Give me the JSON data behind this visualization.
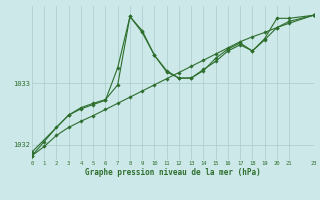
{
  "title": "Graphe pression niveau de la mer (hPa)",
  "bg_color": "#cce8e8",
  "line_color": "#2d6e2d",
  "grid_color": "#aacccc",
  "xlim": [
    0,
    23
  ],
  "ylim": [
    1031.75,
    1034.25
  ],
  "yticks": [
    1032,
    1033
  ],
  "xticks": [
    0,
    1,
    2,
    3,
    4,
    5,
    6,
    7,
    8,
    9,
    10,
    11,
    12,
    13,
    14,
    15,
    16,
    17,
    18,
    19,
    20,
    21,
    23
  ],
  "series1_x": [
    0,
    1,
    2,
    3,
    4,
    5,
    6,
    7,
    8,
    9,
    10,
    11,
    12,
    13,
    14,
    15,
    16,
    17,
    18,
    19,
    20,
    21,
    23
  ],
  "series1_y": [
    1031.82,
    1031.97,
    1032.15,
    1032.28,
    1032.38,
    1032.47,
    1032.57,
    1032.67,
    1032.77,
    1032.87,
    1032.97,
    1033.07,
    1033.17,
    1033.27,
    1033.37,
    1033.47,
    1033.57,
    1033.67,
    1033.75,
    1033.82,
    1033.9,
    1033.97,
    1034.1
  ],
  "series2_x": [
    0,
    1,
    2,
    3,
    4,
    5,
    6,
    7,
    8,
    9,
    10,
    11,
    12,
    13,
    14,
    15,
    16,
    17,
    18,
    19,
    20,
    21,
    23
  ],
  "series2_y": [
    1031.82,
    1032.05,
    1032.28,
    1032.48,
    1032.58,
    1032.65,
    1032.72,
    1033.25,
    1034.08,
    1033.82,
    1033.45,
    1033.2,
    1033.08,
    1033.08,
    1033.22,
    1033.35,
    1033.52,
    1033.62,
    1033.52,
    1033.72,
    1034.05,
    1034.05,
    1034.1
  ],
  "series3_x": [
    0,
    3,
    4,
    5,
    6,
    7,
    8,
    9,
    10,
    11,
    12,
    13,
    14,
    15,
    16,
    17,
    18,
    19,
    20,
    21,
    23
  ],
  "series3_y": [
    1031.88,
    1032.48,
    1032.6,
    1032.67,
    1032.73,
    1032.97,
    1034.08,
    1033.85,
    1033.45,
    1033.18,
    1033.08,
    1033.08,
    1033.2,
    1033.4,
    1033.55,
    1033.65,
    1033.52,
    1033.7,
    1033.9,
    1034.0,
    1034.1
  ]
}
